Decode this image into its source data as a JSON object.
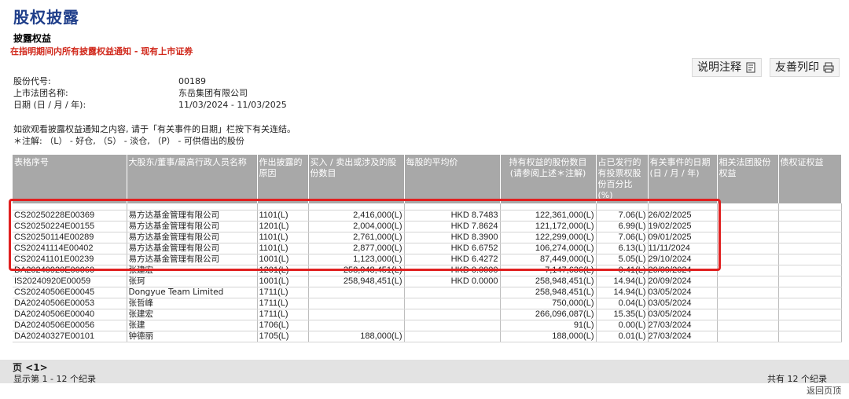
{
  "page": {
    "title": "股权披露",
    "section_title": "披露权益",
    "subtitle": "在指明期间内所有披露权益通知 - 现有上市证券"
  },
  "actions": {
    "explain_label": "说明注释",
    "print_label": "友善列印"
  },
  "info": {
    "stock_code_label": "股份代号:",
    "stock_code_value": "00189",
    "company_label": "上市法团名称:",
    "company_value": "东岳集团有限公司",
    "date_label": "日期 (日 / 月 / 年):",
    "date_value": "11/03/2024 - 11/03/2025"
  },
  "notes": {
    "line1": "如欲观看披露权益通知之内容, 请于「有关事件的日期」栏按下有关连结。",
    "line2": "＊注解: （L） - 好仓, （S） - 淡仓, （P） - 可供借出的股份"
  },
  "table": {
    "headers": {
      "form_no": "表格序号",
      "name": "大股东/董事/最高行政人员名称",
      "reason": "作出披露的原因",
      "shares_involved": "买入 / 卖出或涉及的股份数目",
      "avg_price": "每股的平均价",
      "shares_held": "持有权益的股份数目 (请参阅上述＊注解)",
      "pct": "占已发行的有投票权股份百分比 (%)",
      "event_date": "有关事件的日期 (日 / 月 / 年)",
      "associated": "相关法团股份权益",
      "debenture": "债权证权益"
    },
    "rows": [
      {
        "form_no": "CS20250228E00369",
        "name": "易方达基金管理有限公司",
        "reason": "1101(L)",
        "shares_involved": "2,416,000(L)",
        "avg_price": "HKD 8.7483",
        "shares_held": "122,361,000(L)",
        "pct": "7.06(L)",
        "event_date": "26/02/2025"
      },
      {
        "form_no": "CS20250224E00155",
        "name": "易方达基金管理有限公司",
        "reason": "1201(L)",
        "shares_involved": "2,004,000(L)",
        "avg_price": "HKD 7.8624",
        "shares_held": "121,172,000(L)",
        "pct": "6.99(L)",
        "event_date": "19/02/2025"
      },
      {
        "form_no": "CS20250114E00289",
        "name": "易方达基金管理有限公司",
        "reason": "1101(L)",
        "shares_involved": "2,761,000(L)",
        "avg_price": "HKD 8.3900",
        "shares_held": "122,299,000(L)",
        "pct": "7.06(L)",
        "event_date": "09/01/2025"
      },
      {
        "form_no": "CS20241114E00402",
        "name": "易方达基金管理有限公司",
        "reason": "1101(L)",
        "shares_involved": "2,877,000(L)",
        "avg_price": "HKD 6.6752",
        "shares_held": "106,274,000(L)",
        "pct": "6.13(L)",
        "event_date": "11/11/2024"
      },
      {
        "form_no": "CS20241101E00239",
        "name": "易方达基金管理有限公司",
        "reason": "1001(L)",
        "shares_involved": "1,123,000(L)",
        "avg_price": "HKD 6.4272",
        "shares_held": "87,449,000(L)",
        "pct": "5.05(L)",
        "event_date": "29/10/2024"
      },
      {
        "form_no": "DA20240920E00060",
        "name": "张建宏",
        "reason": "1201(L)",
        "shares_involved": "258,948,451(L)",
        "avg_price": "HKD 0.0000",
        "shares_held": "7,147,636(L)",
        "pct": "0.41(L)",
        "event_date": "20/09/2024"
      },
      {
        "form_no": "IS20240920E00059",
        "name": "张珂",
        "reason": "1001(L)",
        "shares_involved": "258,948,451(L)",
        "avg_price": "HKD 0.0000",
        "shares_held": "258,948,451(L)",
        "pct": "14.94(L)",
        "event_date": "20/09/2024"
      },
      {
        "form_no": "CS20240506E00045",
        "name": "Dongyue Team Limited",
        "reason": "1711(L)",
        "shares_involved": "",
        "avg_price": "",
        "shares_held": "258,948,451(L)",
        "pct": "14.94(L)",
        "event_date": "03/05/2024"
      },
      {
        "form_no": "DA20240506E00053",
        "name": "张哲峰",
        "reason": "1711(L)",
        "shares_involved": "",
        "avg_price": "",
        "shares_held": "750,000(L)",
        "pct": "0.04(L)",
        "event_date": "03/05/2024"
      },
      {
        "form_no": "DA20240506E00040",
        "name": "张建宏",
        "reason": "1711(L)",
        "shares_involved": "",
        "avg_price": "",
        "shares_held": "266,096,087(L)",
        "pct": "15.35(L)",
        "event_date": "03/05/2024"
      },
      {
        "form_no": "DA20240506E00056",
        "name": "张建",
        "reason": "1706(L)",
        "shares_involved": "",
        "avg_price": "",
        "shares_held": "91(L)",
        "pct": "0.00(L)",
        "event_date": "27/03/2024"
      },
      {
        "form_no": "DA20240327E00101",
        "name": "钟德丽",
        "reason": "1705(L)",
        "shares_involved": "188,000(L)",
        "avg_price": "",
        "shares_held": "188,000(L)",
        "pct": "0.01(L)",
        "event_date": "27/03/2024"
      }
    ]
  },
  "pager": {
    "page_label": "页 <1>",
    "range_label": "显示第 1 - 12 个纪录",
    "total_label": "共有 12 个纪录",
    "back_label": "返回页顶"
  },
  "colors": {
    "title": "#1f3e8a",
    "subtitle": "#d12a1d",
    "header_bg": "#a8a8a8",
    "highlight": "#e02020"
  }
}
